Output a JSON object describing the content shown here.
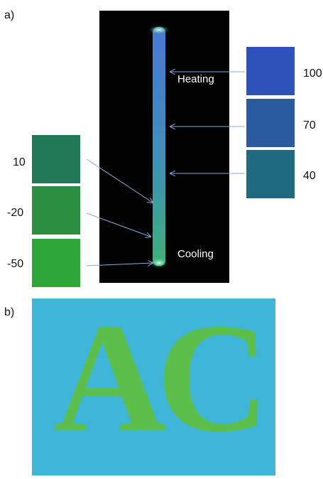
{
  "panel_a": {
    "label": "a)",
    "heating_label": "Heating",
    "cooling_label": "Cooling",
    "right_swatches": [
      {
        "label": "100"
      },
      {
        "label": "70"
      },
      {
        "label": "40"
      }
    ],
    "left_swatches": [
      {
        "label": "10"
      },
      {
        "label": "-20"
      },
      {
        "label": "-50"
      }
    ]
  },
  "panel_b": {
    "label": "b)",
    "letters": [
      "A",
      "C"
    ]
  }
}
